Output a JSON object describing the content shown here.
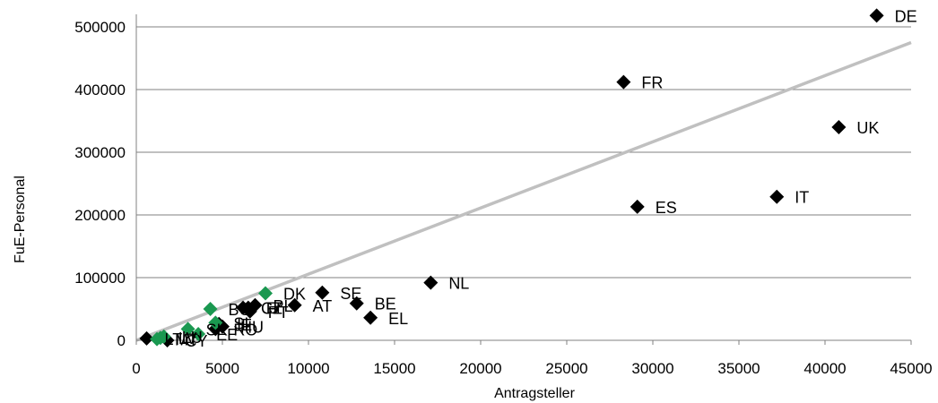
{
  "chart_data": {
    "type": "scatter",
    "title": "",
    "xlabel": "Antragsteller",
    "ylabel": "FuE-Personal",
    "xlim": [
      0,
      45000
    ],
    "ylim": [
      0,
      500000
    ],
    "x_ticks": [
      "0",
      "5000",
      "10000",
      "15000",
      "20000",
      "25000",
      "30000",
      "35000",
      "40000",
      "45000"
    ],
    "y_ticks": [
      "0",
      "100000",
      "200000",
      "300000",
      "400000",
      "500000"
    ],
    "grid": "horizontal",
    "marker": "diamond",
    "colors": {
      "black_points": "#000000",
      "green_points": "#1a9850",
      "trendline": "#c0c0c0",
      "gridline": "#808080"
    },
    "series": [
      {
        "color": "black",
        "points": [
          {
            "label": "DE",
            "x": 43000,
            "y": 518000
          },
          {
            "label": "FR",
            "x": 28300,
            "y": 412000
          },
          {
            "label": "UK",
            "x": 40800,
            "y": 340000
          },
          {
            "label": "IT",
            "x": 37200,
            "y": 229000
          },
          {
            "label": "ES",
            "x": 29100,
            "y": 213000
          },
          {
            "label": "NL",
            "x": 17100,
            "y": 92000
          },
          {
            "label": "SE",
            "x": 10800,
            "y": 76000
          },
          {
            "label": "BE",
            "x": 12800,
            "y": 59000
          },
          {
            "label": "EL",
            "x": 13600,
            "y": 36000
          },
          {
            "label": "AT",
            "x": 9200,
            "y": 56000
          },
          {
            "label": "PL",
            "x": 6900,
            "y": 56000
          },
          {
            "label": "FI",
            "x": 6500,
            "y": 52000
          },
          {
            "label": "PT",
            "x": 6600,
            "y": 46000
          },
          {
            "label": "CZ",
            "x": 6200,
            "y": 52000
          },
          {
            "label": "HU",
            "x": 5000,
            "y": 22000
          },
          {
            "label": "IE",
            "x": 4800,
            "y": 26000
          },
          {
            "label": "RO",
            "x": 4600,
            "y": 18000
          },
          {
            "label": "LT",
            "x": 600,
            "y": 3000
          },
          {
            "label": "CY",
            "x": 1800,
            "y": 0
          }
        ]
      },
      {
        "color": "green",
        "points": [
          {
            "label": "DK",
            "x": 7500,
            "y": 75000
          },
          {
            "label": "BG",
            "x": 4300,
            "y": 50000
          },
          {
            "label": "SI",
            "x": 4600,
            "y": 28000
          },
          {
            "label": "SK",
            "x": 3000,
            "y": 18000
          },
          {
            "label": "LU",
            "x": 1600,
            "y": 6000
          },
          {
            "label": "LV",
            "x": 1400,
            "y": 4000
          },
          {
            "label": "MT",
            "x": 1200,
            "y": 2000
          },
          {
            "label": "EE",
            "x": 3600,
            "y": 10000
          }
        ]
      }
    ],
    "trendline": {
      "x": [
        0,
        45000
      ],
      "y": [
        0,
        475000
      ]
    }
  }
}
